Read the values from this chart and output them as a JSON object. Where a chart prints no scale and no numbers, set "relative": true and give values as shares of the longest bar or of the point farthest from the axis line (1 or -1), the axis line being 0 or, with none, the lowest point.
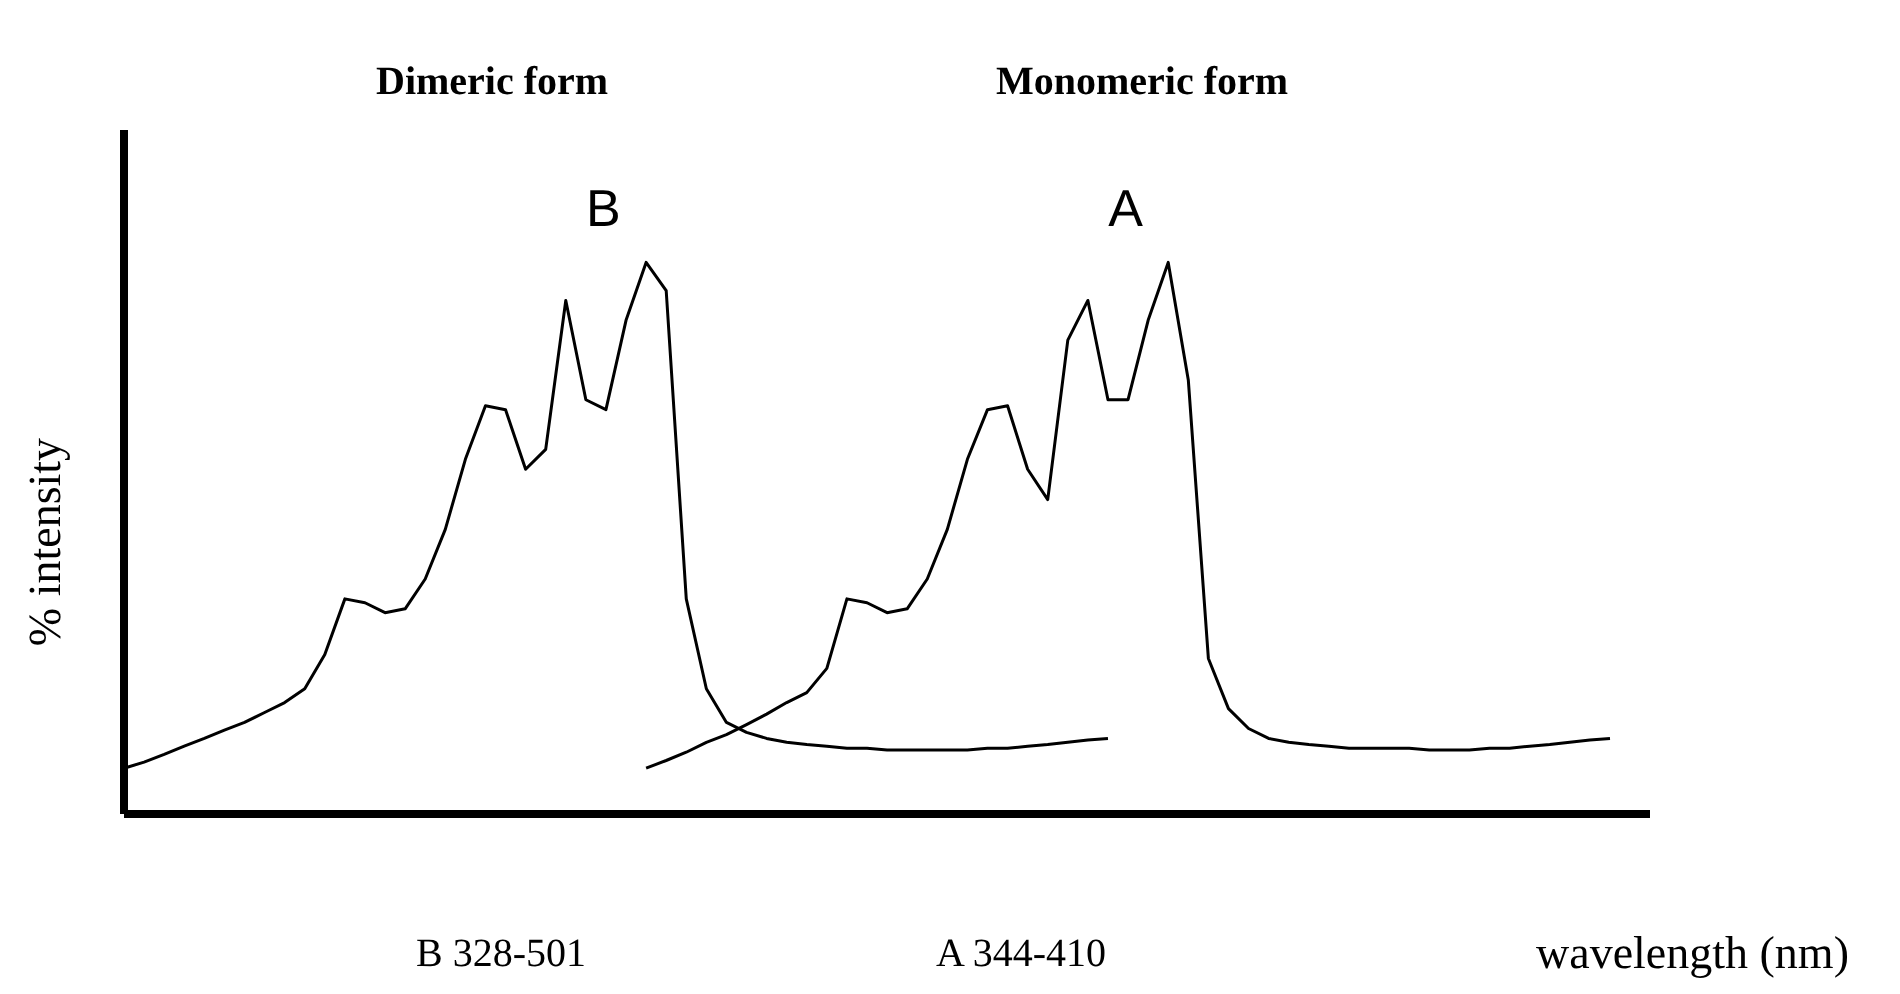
{
  "chart_data": {
    "type": "line",
    "relative": true,
    "xlabel": "wavelength (nm)",
    "ylabel": "% intensity",
    "annotations": [
      "Dimeric form",
      "Monomeric form",
      "B 328-501",
      "A 344-410"
    ],
    "categories": [
      null,
      null,
      null,
      null,
      null,
      null,
      null,
      null,
      null,
      null,
      null,
      null,
      null,
      null,
      null,
      null,
      null,
      null,
      null,
      null,
      null,
      null,
      null,
      null,
      null,
      null,
      null,
      null,
      null,
      null,
      null,
      null,
      null,
      null,
      null,
      null,
      null,
      null,
      null,
      null,
      null,
      null,
      null,
      null,
      null,
      null,
      null,
      null,
      null,
      null,
      null,
      null,
      null,
      null,
      null,
      null,
      null,
      null,
      null,
      null,
      null,
      null,
      null,
      null,
      null,
      null,
      null,
      null,
      null,
      null,
      null,
      null,
      null,
      null,
      null
    ],
    "series": [
      {
        "name": "B",
        "color": "#000000",
        "values": [
          0.083,
          0.094,
          0.108,
          0.123,
          0.137,
          0.152,
          0.166,
          0.184,
          0.202,
          0.227,
          0.289,
          0.39,
          0.383,
          0.365,
          0.372,
          0.426,
          0.516,
          0.643,
          0.74,
          0.733,
          0.625,
          0.661,
          0.931,
          0.751,
          0.733,
          0.895,
          1,
          0.949,
          0.39,
          0.227,
          0.166,
          0.148,
          0.137,
          0.13,
          0.126,
          0.123,
          0.119,
          0.119,
          0.116,
          0.116,
          0.116,
          0.116,
          0.116,
          0.119,
          0.119,
          0.123,
          0.126,
          0.13,
          0.134,
          0.137,
          null,
          null,
          null,
          null,
          null,
          null,
          null,
          null,
          null,
          null,
          null,
          null,
          null,
          null,
          null,
          null,
          null,
          null,
          null,
          null,
          null,
          null,
          null,
          null,
          null
        ]
      },
      {
        "name": "A",
        "color": "#000000",
        "values": [
          null,
          null,
          null,
          null,
          null,
          null,
          null,
          null,
          null,
          null,
          null,
          null,
          null,
          null,
          null,
          null,
          null,
          null,
          null,
          null,
          null,
          null,
          null,
          null,
          null,
          null,
          0.083,
          0.097,
          0.112,
          0.13,
          0.144,
          0.162,
          0.181,
          0.202,
          0.22,
          0.264,
          0.39,
          0.383,
          0.365,
          0.372,
          0.426,
          0.516,
          0.643,
          0.733,
          0.74,
          0.625,
          0.57,
          0.859,
          0.931,
          0.751,
          0.751,
          0.895,
          1,
          0.787,
          0.282,
          0.191,
          0.155,
          0.137,
          0.13,
          0.126,
          0.123,
          0.119,
          0.119,
          0.119,
          0.119,
          0.116,
          0.116,
          0.116,
          0.119,
          0.119,
          0.123,
          0.126,
          0.13,
          0.134,
          0.137
        ]
      }
    ]
  }
}
